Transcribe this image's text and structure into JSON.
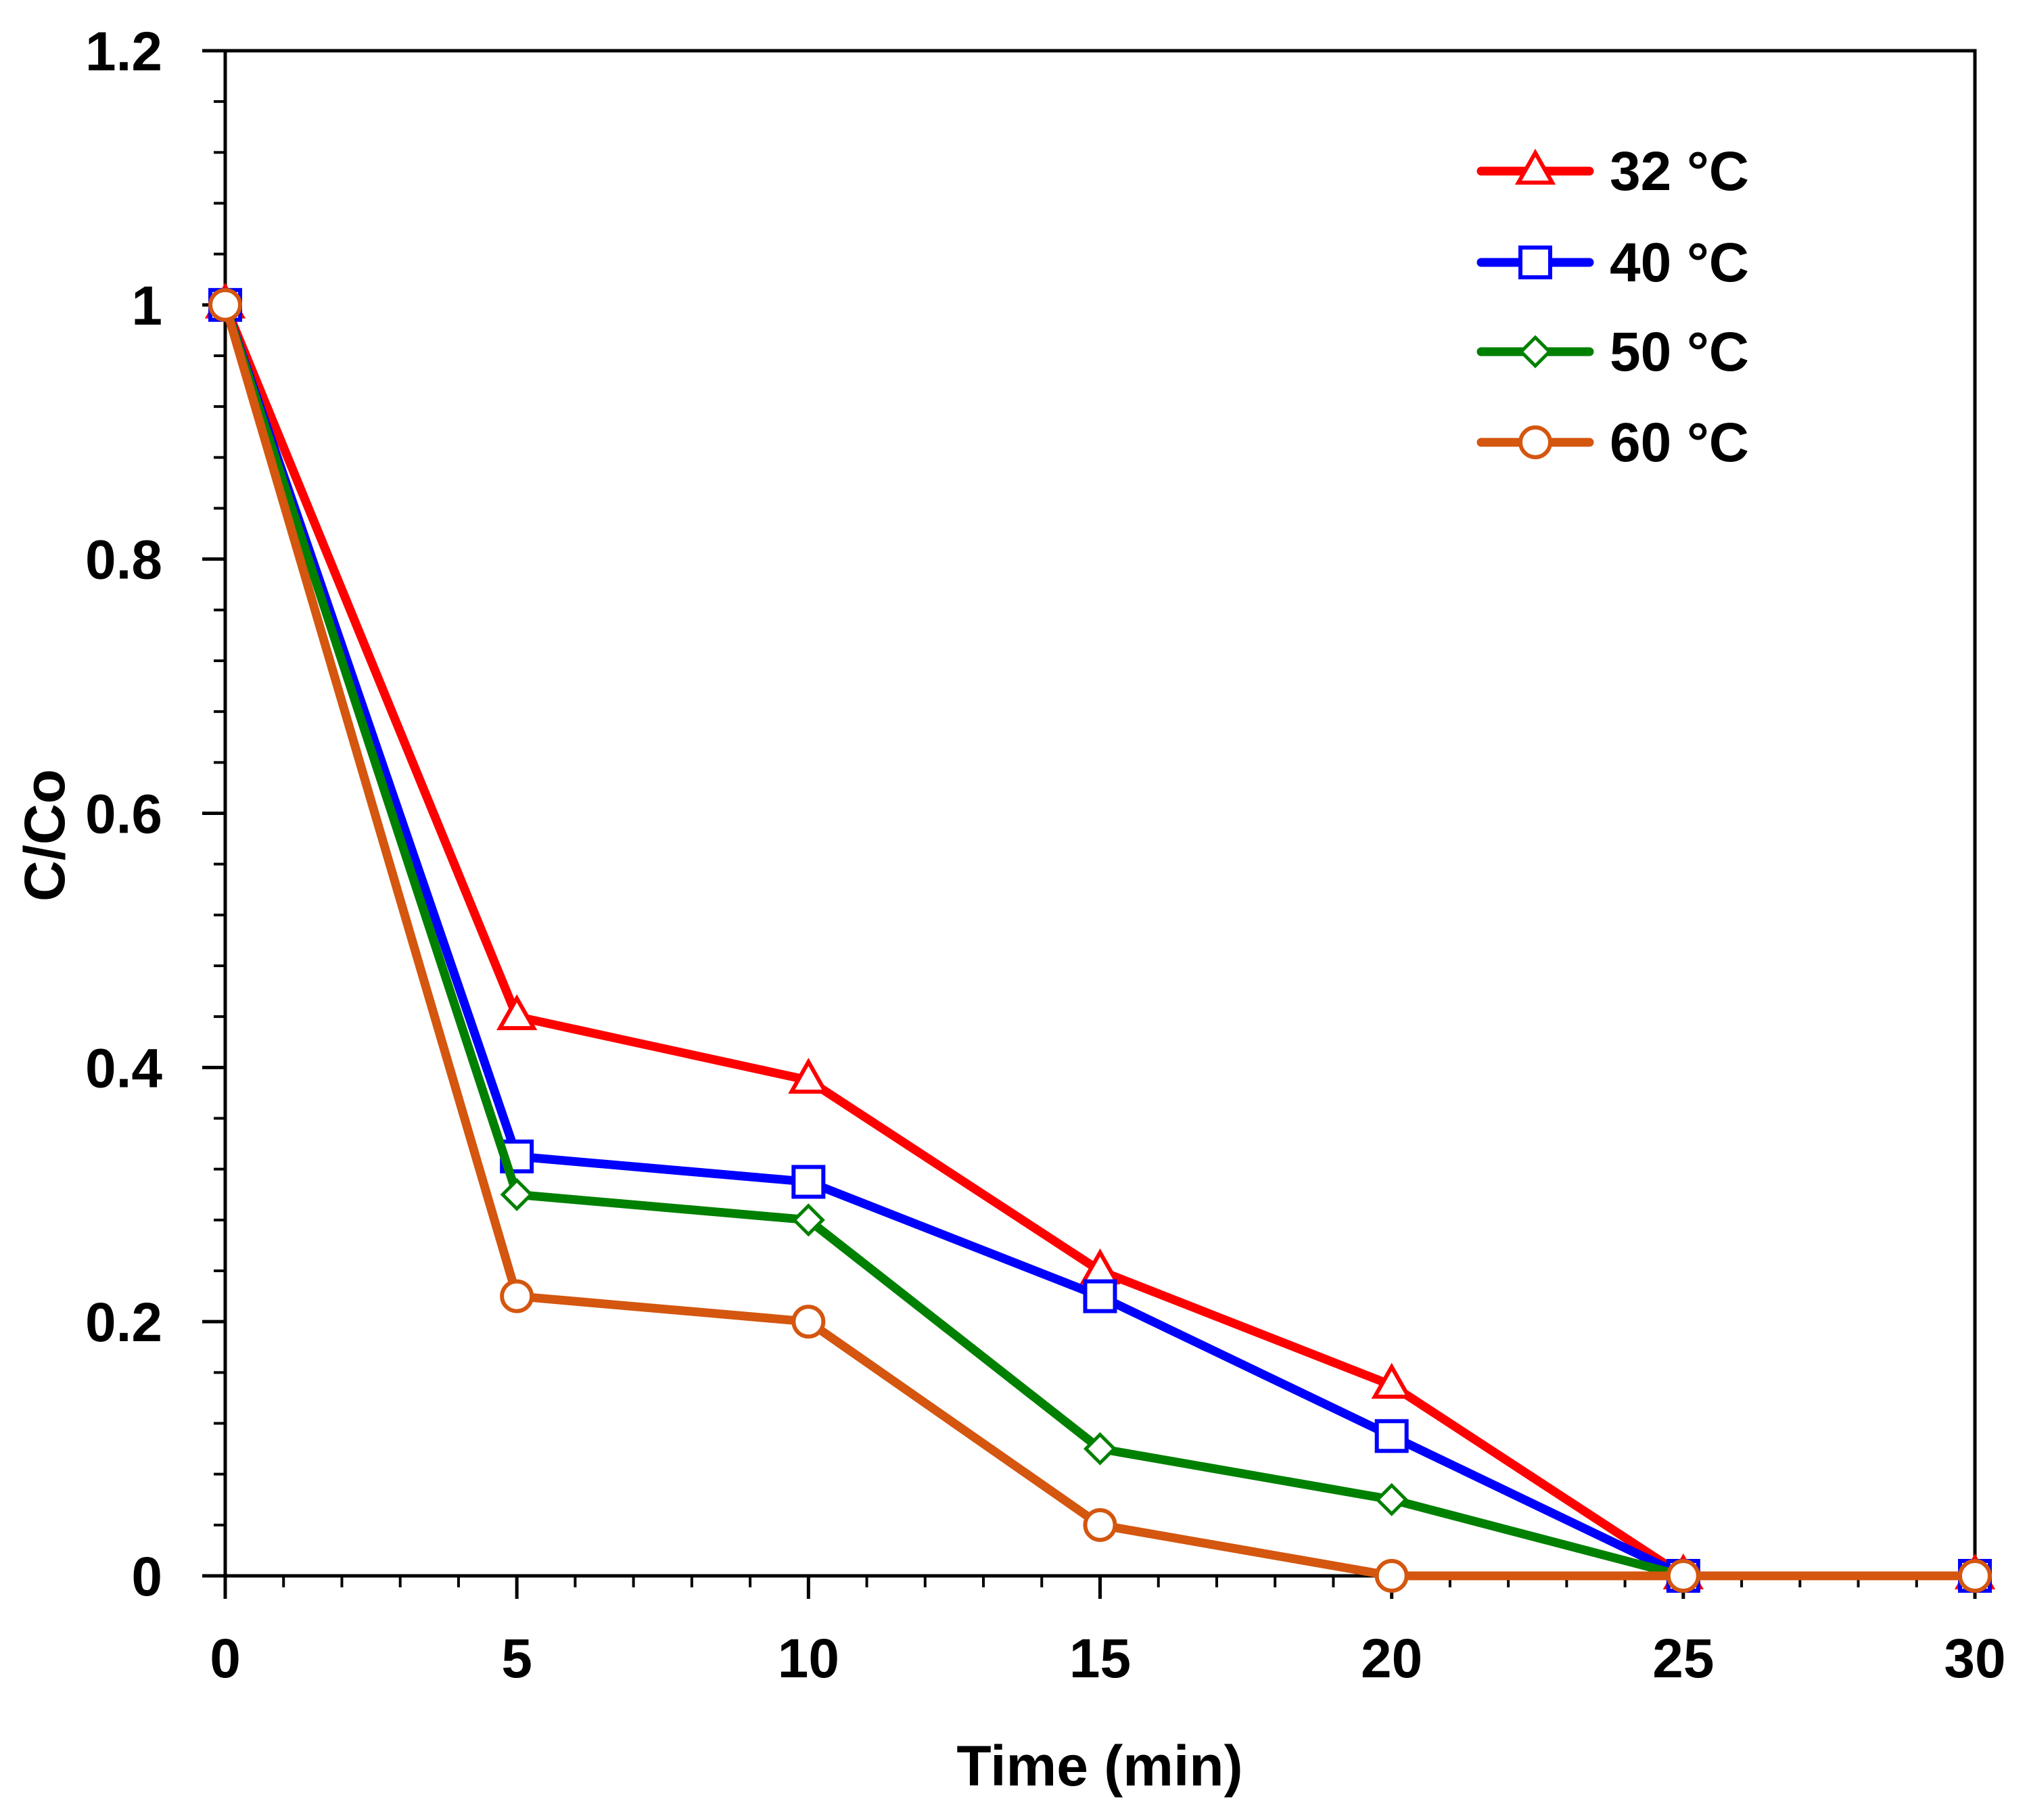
{
  "chart_data": {
    "type": "line",
    "title": "",
    "xlabel": "Time (min)",
    "ylabel": "C/Co",
    "xlim": [
      0,
      30
    ],
    "ylim": [
      0,
      1.2
    ],
    "x_ticks": [
      "0",
      "5",
      "10",
      "15",
      "20",
      "25",
      "30"
    ],
    "y_ticks": [
      "0",
      "0.2",
      "0.4",
      "0.6",
      "0.8",
      "1",
      "1.2"
    ],
    "grid": false,
    "legend_position": "top-right",
    "x": [
      0,
      5,
      10,
      15,
      20,
      25,
      30
    ],
    "series": [
      {
        "name": "32 °C",
        "color": "#ff0000",
        "marker": "triangle",
        "values": [
          1,
          0.44,
          0.39,
          0.24,
          0.15,
          0,
          0
        ]
      },
      {
        "name": "40 °C",
        "color": "#0000ff",
        "marker": "square",
        "values": [
          1,
          0.33,
          0.31,
          0.22,
          0.11,
          0,
          0
        ]
      },
      {
        "name": "50 °C",
        "color": "#008000",
        "marker": "diamond",
        "values": [
          1,
          0.3,
          0.28,
          0.1,
          0.06,
          0,
          0
        ]
      },
      {
        "name": "60 °C",
        "color": "#d4560f",
        "marker": "circle",
        "values": [
          1,
          0.22,
          0.2,
          0.04,
          0,
          0,
          0
        ]
      }
    ]
  }
}
